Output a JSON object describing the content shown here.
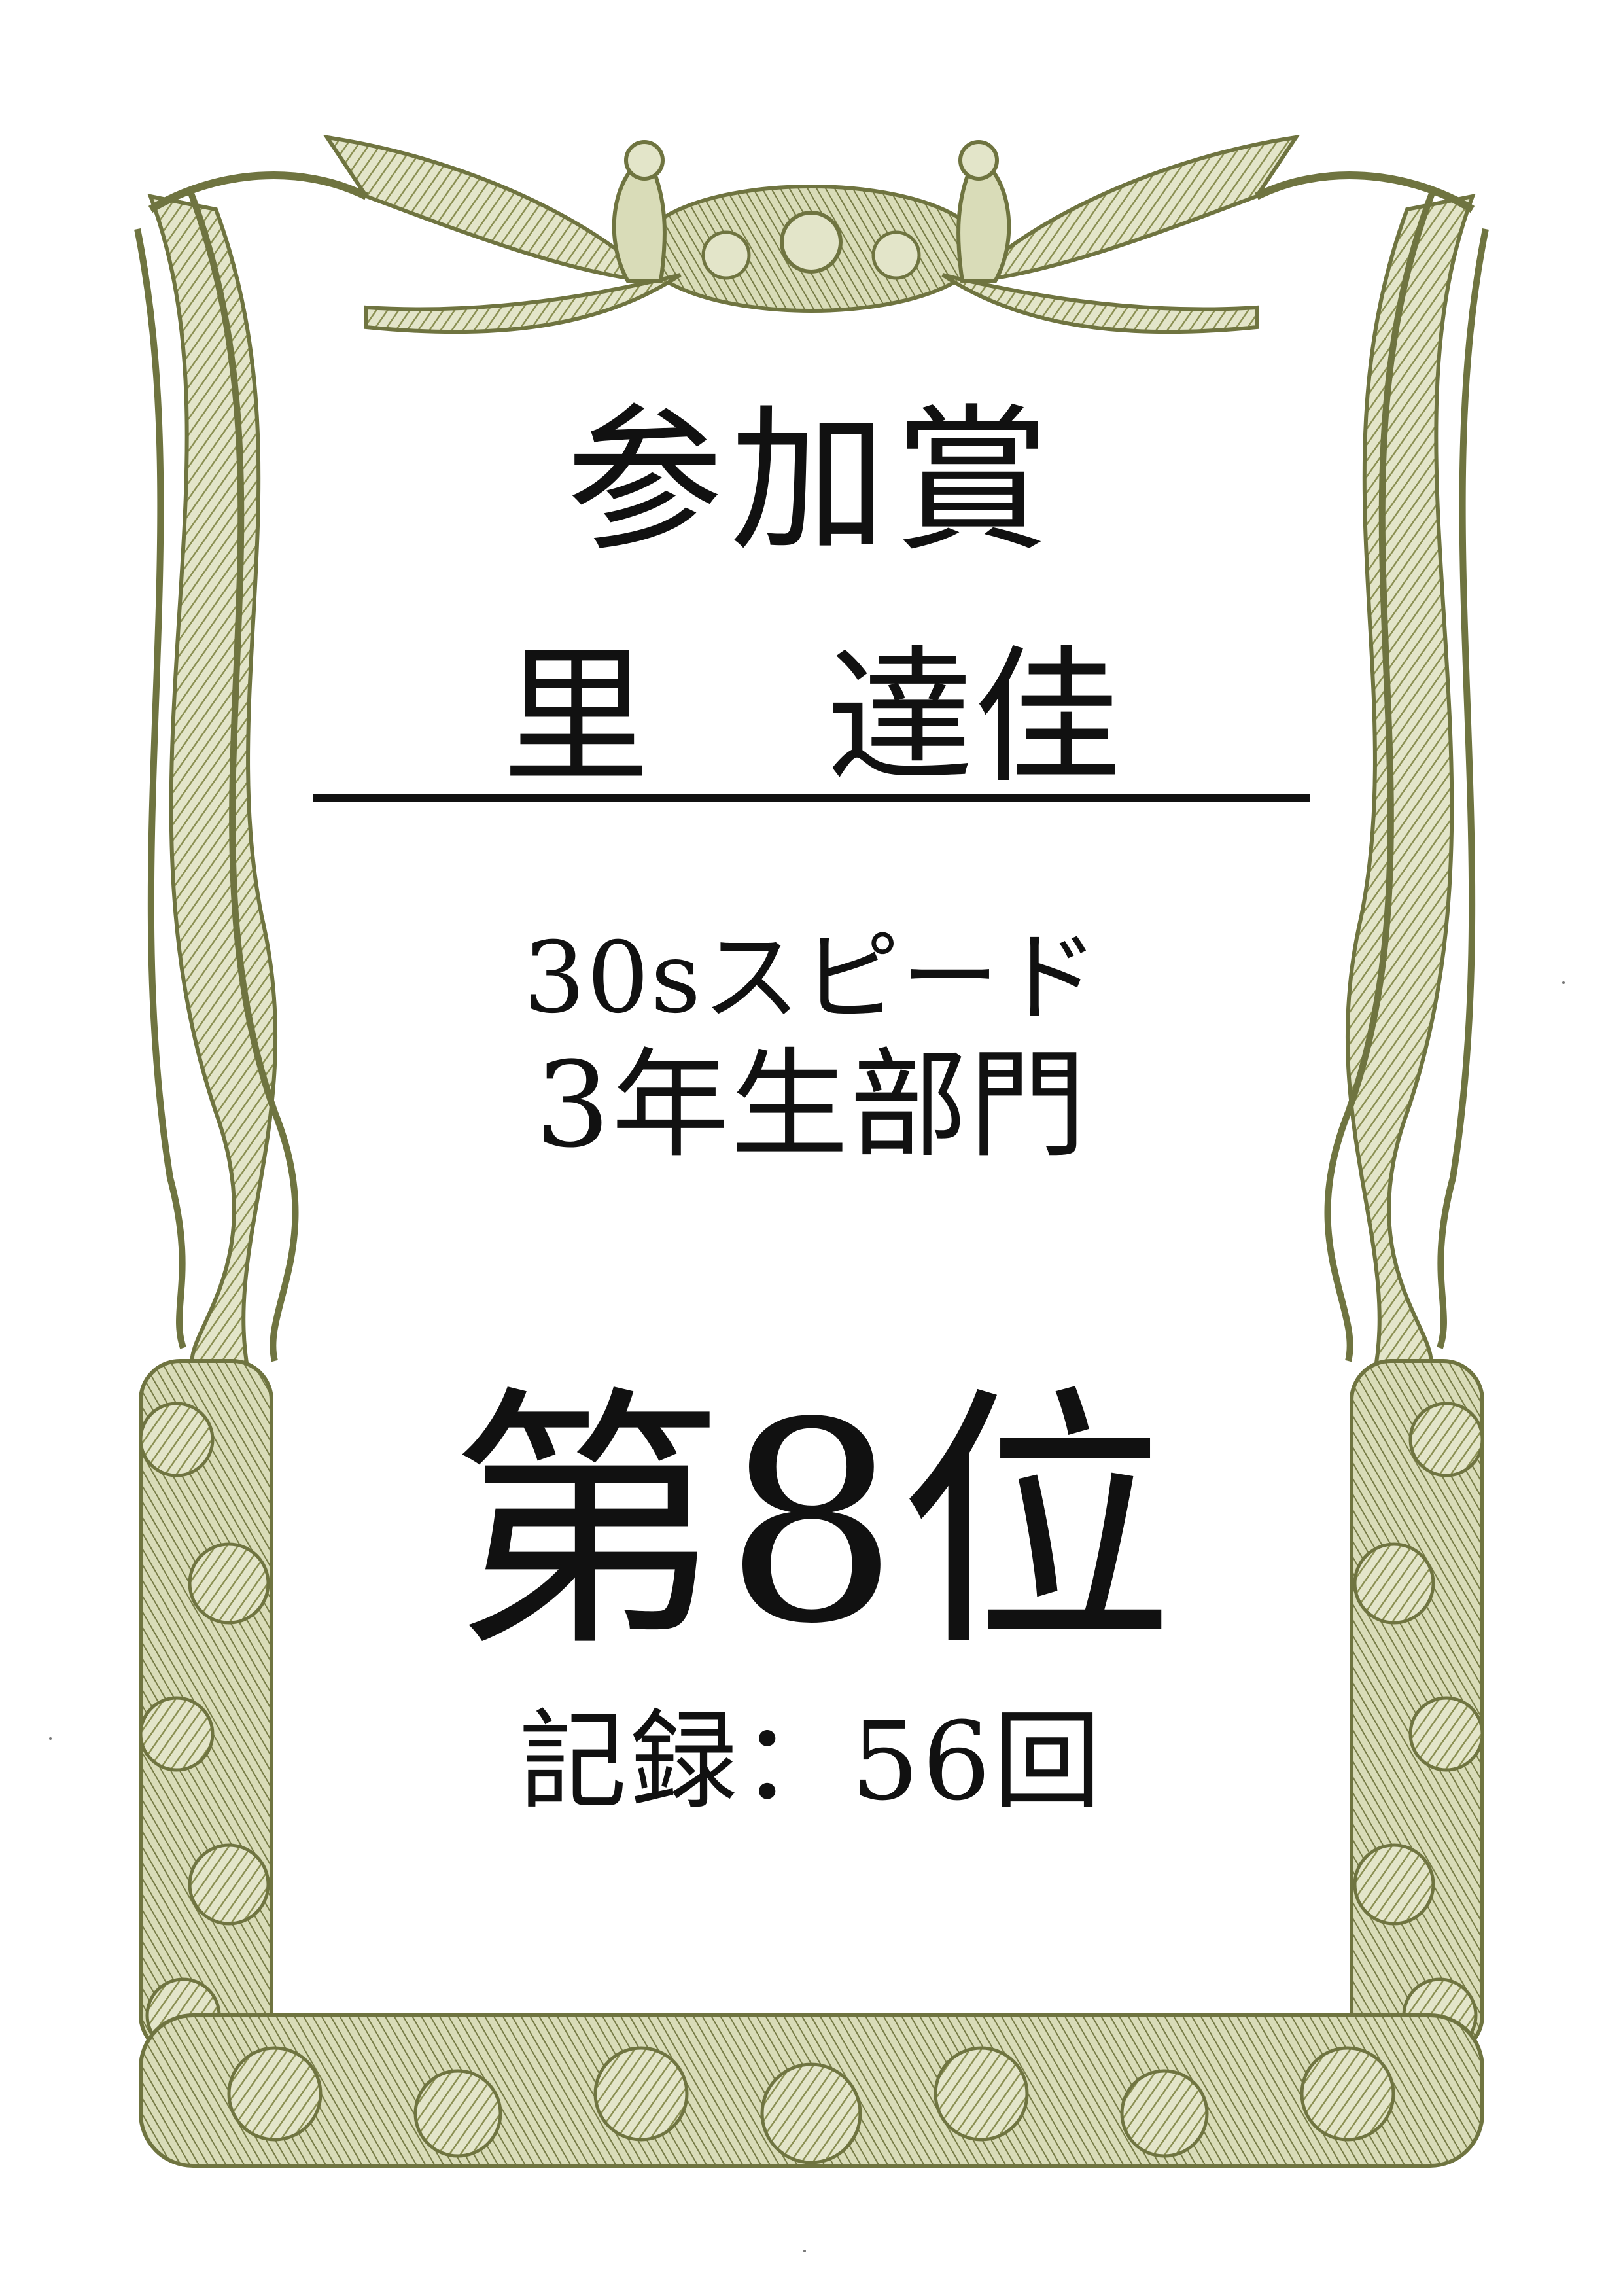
{
  "certificate": {
    "award_title": "参加賞",
    "recipient_family_name": "里",
    "recipient_given_name": "達佳",
    "event_name": "30sスピード",
    "division": "3年生部門",
    "rank": "第8位",
    "record": "記録：56回"
  },
  "border": {
    "ornament": "phoenix-and-floral-border",
    "color": "#8a8f52",
    "color_dark": "#6f7440",
    "color_light": "#b7bb86"
  }
}
